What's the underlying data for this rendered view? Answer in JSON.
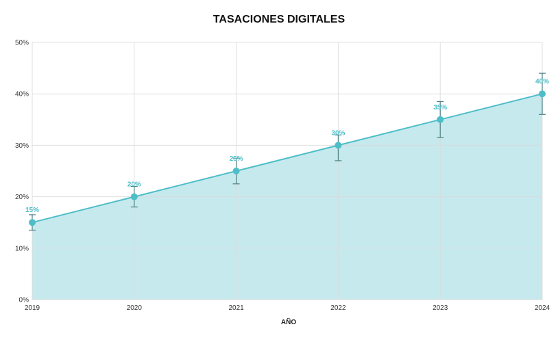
{
  "chart_data": {
    "type": "area",
    "title": "TASACIONES DIGITALES",
    "xlabel": "AÑO",
    "ylabel": "",
    "categories": [
      "2019",
      "2020",
      "2021",
      "2022",
      "2023",
      "2024"
    ],
    "series": [
      {
        "values": [
          15,
          20,
          25,
          30,
          35,
          40
        ],
        "error_low": [
          13.5,
          18,
          22.5,
          27,
          31.5,
          36
        ],
        "error_high": [
          16.5,
          22,
          27.5,
          32,
          38.5,
          44
        ],
        "labels": [
          "15%",
          "20%",
          "25%",
          "30%",
          "35%",
          "40%"
        ]
      }
    ],
    "ylim": [
      0,
      50
    ],
    "y_ticks": [
      "0%",
      "10%",
      "20%",
      "30%",
      "40%",
      "50%"
    ],
    "grid": true,
    "colors": {
      "line": "#4dbec7",
      "fill": "#c6e9ee",
      "marker": "#4dbec7",
      "error_bar": "#4d7f82",
      "label": "#4dbec7",
      "grid": "#d9d9d9"
    }
  }
}
